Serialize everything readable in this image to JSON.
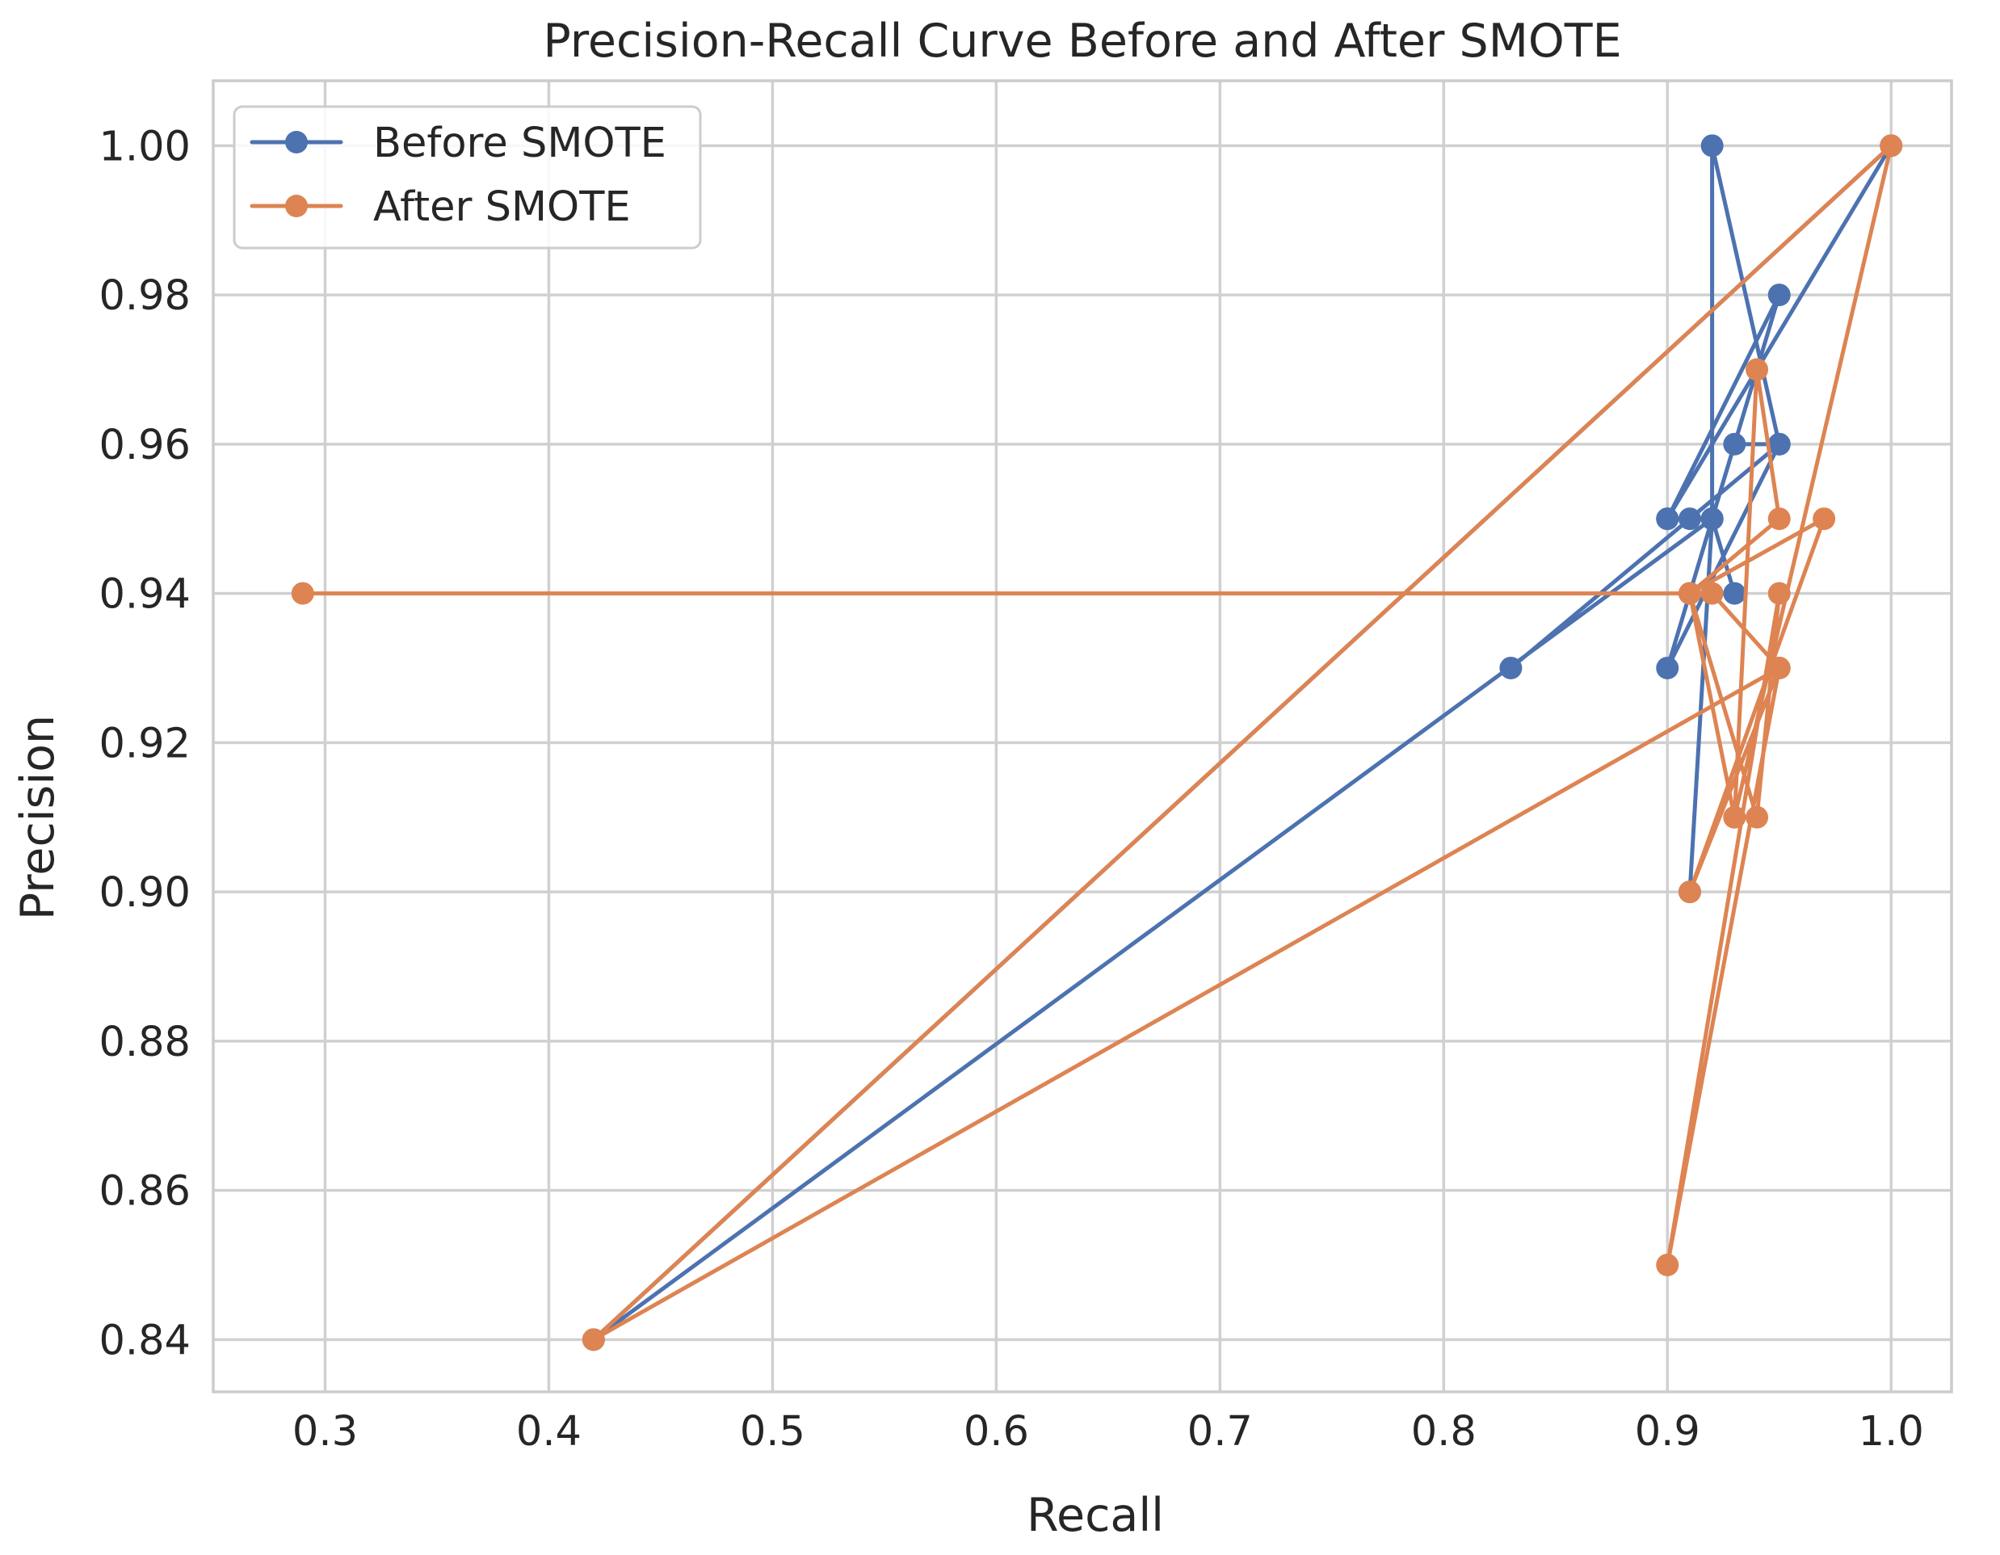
{
  "chart_data": {
    "type": "line",
    "title": "Precision-Recall Curve Before and After SMOTE",
    "xlabel": "Recall",
    "ylabel": "Precision",
    "xlim": [
      0.25,
      1.027
    ],
    "ylim": [
      0.833,
      1.0087
    ],
    "xticks": [
      0.3,
      0.4,
      0.5,
      0.6,
      0.7,
      0.8,
      0.9,
      1.0
    ],
    "xtick_labels": [
      "0.3",
      "0.4",
      "0.5",
      "0.6",
      "0.7",
      "0.8",
      "0.9",
      "1.0"
    ],
    "yticks": [
      0.84,
      0.86,
      0.88,
      0.9,
      0.92,
      0.94,
      0.96,
      0.98,
      1.0
    ],
    "ytick_labels": [
      "0.84",
      "0.86",
      "0.88",
      "0.90",
      "0.92",
      "0.94",
      "0.96",
      "0.98",
      "1.00"
    ],
    "grid": true,
    "legend_position": "upper-left",
    "series": [
      {
        "name": "Before SMOTE",
        "color": "#4c72b0",
        "points": [
          [
            0.83,
            0.93
          ],
          [
            0.95,
            0.96
          ],
          [
            0.93,
            0.96
          ],
          [
            0.92,
            0.95
          ],
          [
            0.91,
            0.95
          ],
          [
            0.9,
            0.95
          ],
          [
            0.95,
            0.98
          ],
          [
            0.9,
            0.93
          ],
          [
            0.95,
            0.96
          ],
          [
            0.92,
            1.0
          ],
          [
            0.92,
            0.95
          ],
          [
            0.91,
            0.9
          ],
          [
            0.92,
            0.95
          ],
          [
            0.93,
            0.94
          ],
          [
            0.92,
            0.95
          ],
          [
            0.42,
            0.84
          ],
          [
            1.0,
            1.0
          ],
          [
            0.9,
            0.95
          ]
        ]
      },
      {
        "name": "After SMOTE",
        "color": "#dd8452",
        "points": [
          [
            0.29,
            0.94
          ],
          [
            0.91,
            0.94
          ],
          [
            0.92,
            0.94
          ],
          [
            0.95,
            0.93
          ],
          [
            0.91,
            0.9
          ],
          [
            0.97,
            0.95
          ],
          [
            0.91,
            0.94
          ],
          [
            0.93,
            0.91
          ],
          [
            0.94,
            0.97
          ],
          [
            0.95,
            0.95
          ],
          [
            0.91,
            0.94
          ],
          [
            0.94,
            0.91
          ],
          [
            0.95,
            0.94
          ],
          [
            0.9,
            0.85
          ],
          [
            0.95,
            0.93
          ],
          [
            0.42,
            0.84
          ],
          [
            1.0,
            1.0
          ],
          [
            0.93,
            0.91
          ]
        ]
      }
    ]
  }
}
